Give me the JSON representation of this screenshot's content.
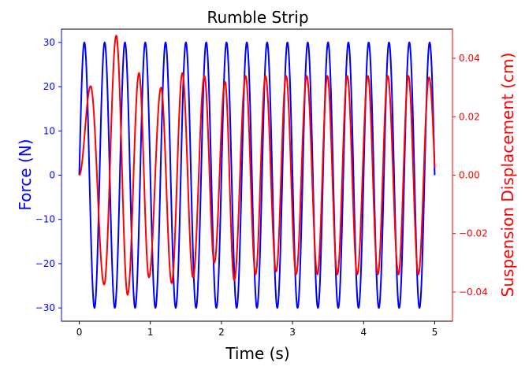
{
  "chart_data": {
    "type": "line",
    "title": "Rumble Strip",
    "xlabel": "Time (s)",
    "xlim": [
      -0.25,
      5.25
    ],
    "x_ticks": [
      0,
      1,
      2,
      3,
      4,
      5
    ],
    "y_left": {
      "label": "Force (N)",
      "color": "#0000ff",
      "ylim": [
        -33,
        33
      ],
      "ticks": [
        -30,
        -20,
        -10,
        0,
        10,
        20,
        30
      ]
    },
    "y_right": {
      "label": "Suspension Displacement (cm)",
      "color": "#ff0000",
      "ylim": [
        -0.05,
        0.05
      ],
      "ticks": [
        -0.04,
        -0.02,
        0.0,
        0.02,
        0.04
      ],
      "tick_labels": [
        "−0.04",
        "−0.02",
        "0.00",
        "0.02",
        "0.04"
      ]
    },
    "series": [
      {
        "axis": "left",
        "color": "#0000ff",
        "function": "sine",
        "amplitude": 30,
        "frequency_hz": 3.5,
        "x_range": [
          0,
          5
        ]
      },
      {
        "axis": "right",
        "color": "#ff0000",
        "function": "forced_response",
        "x_range": [
          0,
          5
        ],
        "peaks": [
          {
            "t": 0.16,
            "y": 0.0305
          },
          {
            "t": 0.35,
            "y": -0.0375
          },
          {
            "t": 0.52,
            "y": 0.0478
          },
          {
            "t": 0.68,
            "y": -0.041
          },
          {
            "t": 0.84,
            "y": 0.035
          },
          {
            "t": 0.98,
            "y": -0.035
          },
          {
            "t": 1.15,
            "y": 0.03
          },
          {
            "t": 1.3,
            "y": -0.037
          },
          {
            "t": 1.45,
            "y": 0.035
          },
          {
            "t": 1.6,
            "y": -0.035
          },
          {
            "t": 1.76,
            "y": 0.034
          },
          {
            "t": 1.9,
            "y": -0.03
          },
          {
            "t": 2.05,
            "y": 0.032
          },
          {
            "t": 2.18,
            "y": -0.036
          },
          {
            "t": 2.34,
            "y": 0.034
          },
          {
            "t": 2.48,
            "y": -0.034
          },
          {
            "t": 2.62,
            "y": 0.034
          },
          {
            "t": 2.77,
            "y": -0.033
          },
          {
            "t": 2.91,
            "y": 0.034
          },
          {
            "t": 3.05,
            "y": -0.034
          },
          {
            "t": 3.2,
            "y": 0.034
          },
          {
            "t": 3.35,
            "y": -0.034
          },
          {
            "t": 3.49,
            "y": 0.034
          },
          {
            "t": 3.63,
            "y": -0.034
          },
          {
            "t": 3.77,
            "y": 0.034
          },
          {
            "t": 3.91,
            "y": -0.034
          },
          {
            "t": 4.06,
            "y": 0.034
          },
          {
            "t": 4.2,
            "y": -0.034
          },
          {
            "t": 4.34,
            "y": 0.034
          },
          {
            "t": 4.49,
            "y": -0.034
          },
          {
            "t": 4.63,
            "y": 0.034
          },
          {
            "t": 4.77,
            "y": -0.034
          },
          {
            "t": 4.92,
            "y": 0.0335
          }
        ],
        "end": {
          "t": 5.0,
          "y": 0.0025
        }
      }
    ]
  }
}
